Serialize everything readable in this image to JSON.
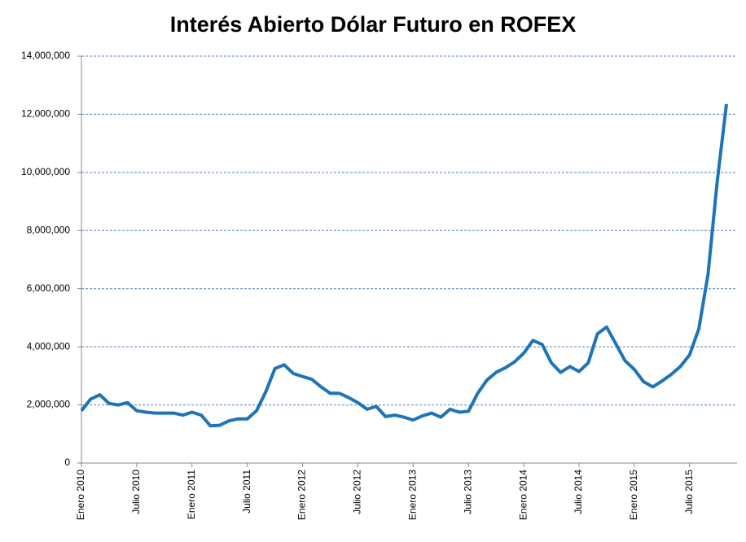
{
  "chart_data": {
    "type": "line",
    "title": "Interés Abierto Dólar Futuro en ROFEX",
    "categories": [
      "Enero 2010",
      null,
      null,
      null,
      null,
      null,
      "Julio 2010",
      null,
      null,
      null,
      null,
      null,
      "Enero 2011",
      null,
      null,
      null,
      null,
      null,
      "Julio 2011",
      null,
      null,
      null,
      null,
      null,
      "Enero 2012",
      null,
      null,
      null,
      null,
      null,
      "Julio 2012",
      null,
      null,
      null,
      null,
      null,
      "Enero 2013",
      null,
      null,
      null,
      null,
      null,
      "Julio 2013",
      null,
      null,
      null,
      null,
      null,
      "Enero 2014",
      null,
      null,
      null,
      null,
      null,
      "Julio 2014",
      null,
      null,
      null,
      null,
      null,
      "Enero 2015",
      null,
      null,
      null,
      null,
      null,
      "Julio 2015",
      null,
      null,
      null,
      null
    ],
    "series": [
      {
        "color": "#1f73b7",
        "values": [
          1800000,
          2200000,
          2350000,
          2050000,
          2000000,
          2080000,
          1800000,
          1750000,
          1720000,
          1720000,
          1720000,
          1650000,
          1750000,
          1650000,
          1280000,
          1300000,
          1450000,
          1520000,
          1520000,
          1800000,
          2450000,
          3250000,
          3380000,
          3080000,
          2980000,
          2880000,
          2620000,
          2400000,
          2400000,
          2250000,
          2080000,
          1850000,
          1950000,
          1600000,
          1650000,
          1580000,
          1480000,
          1620000,
          1720000,
          1580000,
          1850000,
          1750000,
          1780000,
          2400000,
          2850000,
          3120000,
          3280000,
          3480000,
          3780000,
          4220000,
          4080000,
          3450000,
          3120000,
          3320000,
          3150000,
          3450000,
          4450000,
          4680000,
          4100000,
          3520000,
          3220000,
          2800000,
          2620000,
          2820000,
          3050000,
          3320000,
          3720000,
          4620000,
          6500000,
          9700000,
          12350000
        ]
      }
    ],
    "ylim": [
      0,
      14000000
    ],
    "yticks": [
      0,
      {
        "value": 2000000,
        "label": "2,000,000"
      },
      {
        "value": 4000000,
        "label": "4,000,000"
      },
      {
        "value": 6000000,
        "label": "6,000,000"
      },
      {
        "value": 8000000,
        "label": "8,000,000"
      },
      {
        "value": 10000000,
        "label": "10,000,000"
      },
      {
        "value": 12000000,
        "label": "12,000,000"
      },
      {
        "value": 14000000,
        "label": "14,000,000"
      }
    ],
    "grid": true
  }
}
